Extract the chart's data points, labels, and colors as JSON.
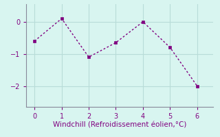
{
  "x": [
    0,
    1,
    2,
    3,
    4,
    5,
    6
  ],
  "y": [
    -0.6,
    0.1,
    -1.1,
    -0.65,
    0.0,
    -0.8,
    -2.0
  ],
  "line_color": "#800080",
  "marker_color": "#800080",
  "bg_color": "#d8f5f0",
  "grid_color": "#b8dcd8",
  "xlabel": "Windchill (Refroidissement éolien,°C)",
  "xlabel_color": "#800080",
  "tick_color": "#800080",
  "spine_color": "#888899",
  "xlim": [
    -0.3,
    6.6
  ],
  "ylim": [
    -2.65,
    0.55
  ],
  "yticks": [
    0,
    -1,
    -2
  ],
  "xticks": [
    0,
    1,
    2,
    3,
    4,
    5,
    6
  ],
  "tick_fontsize": 7,
  "xlabel_fontsize": 7.5
}
